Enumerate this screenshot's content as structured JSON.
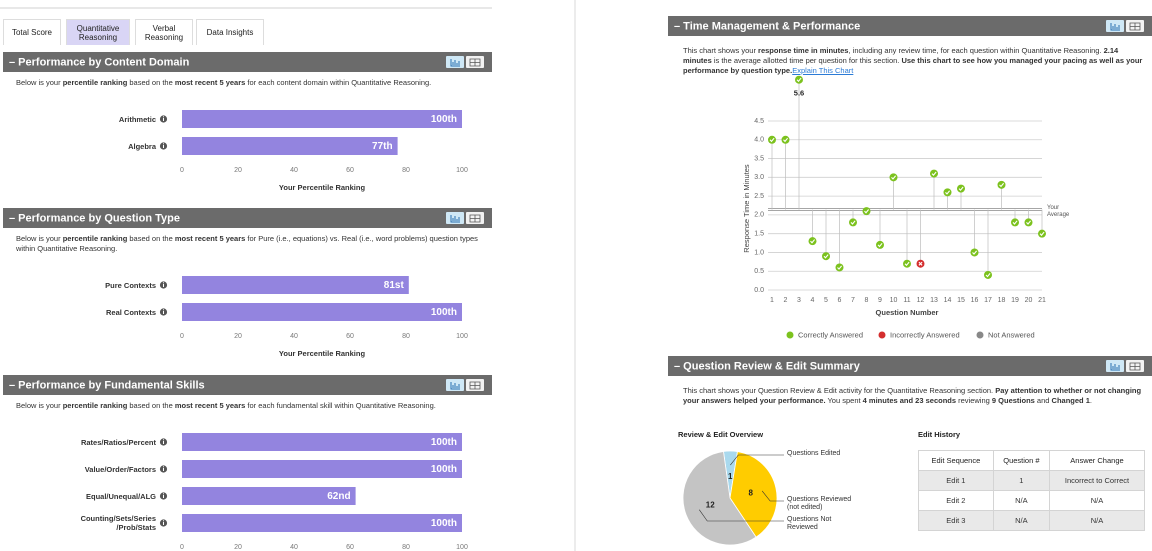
{
  "tabs": {
    "items": [
      "Total Score",
      "Quantitative Reasoning",
      "Verbal Reasoning",
      "Data Insights"
    ],
    "active": 1
  },
  "domain_panel": {
    "title": "– Performance by Content Domain",
    "description": [
      "Below is your ",
      "percentile ranking",
      " based on the ",
      "most recent 5 years",
      " for each content domain within Quantitative Reasoning."
    ],
    "chart": {
      "type": "bar",
      "categories": [
        "Arithmetic",
        "Algebra"
      ],
      "values": [
        100,
        77
      ],
      "value_labels": [
        "100th",
        "77th"
      ],
      "color": "#9384df",
      "xlim": [
        0,
        100
      ],
      "xticks": [
        0,
        20,
        40,
        60,
        80,
        100
      ],
      "xlabel": "Your Percentile Ranking"
    }
  },
  "question_type_panel": {
    "title": "– Performance by Question Type",
    "description": [
      "Below is your ",
      "percentile ranking",
      " based on the ",
      "most recent 5 years",
      " for Pure (i.e., equations) vs. Real (i.e., word problems) question types within Quantitative Reasoning."
    ],
    "chart": {
      "type": "bar",
      "categories": [
        "Pure Contexts",
        "Real Contexts"
      ],
      "values": [
        81,
        100
      ],
      "value_labels": [
        "81st",
        "100th"
      ],
      "color": "#9384df",
      "xlim": [
        0,
        100
      ],
      "xticks": [
        0,
        20,
        40,
        60,
        80,
        100
      ],
      "xlabel": "Your Percentile Ranking"
    }
  },
  "skills_panel": {
    "title": "– Performance by Fundamental Skills",
    "description": [
      "Below is your ",
      "percentile ranking",
      " based on the ",
      "most recent 5 years",
      " for each fundamental skill within Quantitative Reasoning."
    ],
    "chart": {
      "type": "bar",
      "categories": [
        "Rates/Ratios/Percent",
        "Value/Order/Factors",
        "Equal/Unequal/ALG",
        "Counting/Sets/Series /Prob/Stats"
      ],
      "values": [
        100,
        100,
        62,
        100
      ],
      "value_labels": [
        "100th",
        "100th",
        "62nd",
        "100th"
      ],
      "color": "#9384df",
      "xlim": [
        0,
        100
      ],
      "xticks": [
        0,
        20,
        40,
        60,
        80,
        100
      ]
    }
  },
  "time_panel": {
    "title": "– Time Management & Performance",
    "description": [
      "This chart shows your ",
      "response time in minutes",
      ", including any review time, for each question within Quantitative Reasoning. ",
      "2.14 minutes",
      " is the average allotted time per question for this section. ",
      "Use this chart to see how you managed your pacing as well as your performance by question type."
    ],
    "link": "Explain This Chart",
    "chart": {
      "type": "scatter",
      "series": [
        {
          "name": "Correctly Answered",
          "color": "#7cc21e",
          "x": [
            1,
            2,
            3,
            4,
            5,
            6,
            7,
            8,
            9,
            10,
            11,
            13,
            14,
            15,
            16,
            17,
            18,
            19,
            20,
            21
          ],
          "values": [
            4.0,
            4.0,
            5.6,
            1.3,
            0.9,
            0.6,
            1.8,
            2.1,
            1.2,
            3.0,
            0.7,
            3.1,
            2.6,
            2.7,
            1.0,
            0.4,
            2.8,
            1.8,
            1.8,
            1.5
          ],
          "value_labels": [
            null,
            null,
            "5.6",
            null,
            null,
            null,
            null,
            null,
            null,
            null,
            null,
            null,
            null,
            null,
            null,
            null,
            null,
            null,
            null,
            null
          ]
        },
        {
          "name": "Incorrectly Answered",
          "color": "#d42e2e",
          "x": [
            12
          ],
          "values": [
            0.7
          ]
        },
        {
          "name": "Not Answered",
          "color": "#888888",
          "x": [],
          "values": []
        }
      ],
      "xlim": [
        1,
        21
      ],
      "xticks": [
        1,
        2,
        3,
        4,
        5,
        6,
        7,
        8,
        9,
        10,
        11,
        12,
        13,
        14,
        15,
        16,
        17,
        18,
        19,
        20,
        21
      ],
      "ylim": [
        0,
        4.5
      ],
      "yticks": [
        {
          "value": 0,
          "label": "0.0"
        },
        0.5,
        {
          "value": 1,
          "label": "1.0"
        },
        1.5,
        {
          "value": 2,
          "label": "2.0"
        },
        2.5,
        {
          "value": 3,
          "label": "3.0"
        },
        3.5,
        {
          "value": 4,
          "label": "4.0"
        },
        4.5
      ],
      "grid": true,
      "average": {
        "value": 2.14,
        "label": "Your Average"
      },
      "xlabel": "Question Number",
      "ylabel": "Response Time in Minutes"
    }
  },
  "review_panel": {
    "title": "– Question Review & Edit Summary",
    "description": [
      "This chart shows your Question Review & Edit activity for the Quantitative Reasoning section. ",
      "Pay attention to whether or not changing your answers helped your performance.",
      " You spent ",
      "4 minutes and 23 seconds",
      " reviewing ",
      "9 Questions",
      " and ",
      "Changed 1",
      "."
    ],
    "chart": {
      "type": "pie",
      "title": "Review & Edit Overview",
      "categories": [
        "Questions Edited",
        "Questions Reviewed (not edited)",
        "Questions Not Reviewed"
      ],
      "values": [
        1,
        8,
        12
      ],
      "colors": [
        "#a9d9ee",
        "#ffcc00",
        "#c4c4c4"
      ]
    },
    "edit_history": {
      "title": "Edit History",
      "columns": [
        "Edit Sequence",
        "Question #",
        "Answer Change"
      ],
      "rows": [
        [
          "Edit 1",
          "1",
          "Incorrect to Correct"
        ],
        [
          "Edit 2",
          "N/A",
          "N/A"
        ],
        [
          "Edit 3",
          "N/A",
          "N/A"
        ]
      ]
    }
  }
}
